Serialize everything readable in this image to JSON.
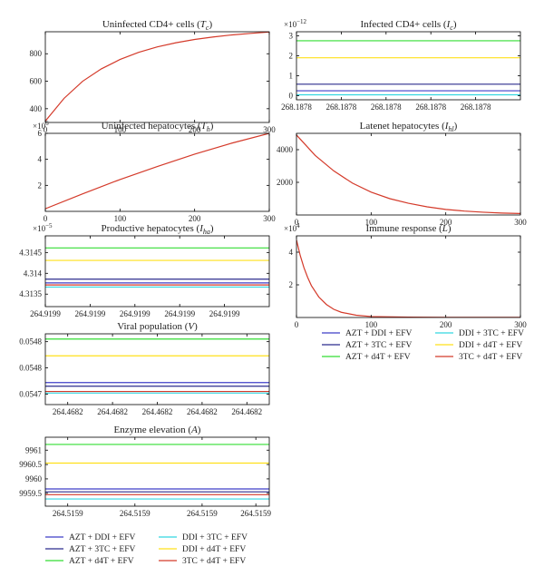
{
  "colors": {
    "AZT + DDI + EFV": "#3f3fc8",
    "AZT + 3TC + EFV": "#2b2b8e",
    "AZT + d4T + EFV": "#33dd33",
    "DDI + 3TC + EFV": "#33d6e0",
    "DDI + d4T + EFV": "#ffe01a",
    "3TC + d4T + EFV": "#d43a2a",
    "axis": "#000000",
    "background": "#ffffff"
  },
  "chart_data": [
    {
      "id": "tc",
      "type": "line",
      "title": "Uninfected CD4+ cells (",
      "title_symbol": "T",
      "title_sub": "c",
      "title_close": ")",
      "xlim": [
        0,
        300
      ],
      "ylim": [
        300,
        960
      ],
      "xticks": [
        0,
        100,
        200,
        300
      ],
      "xtick_labels": [
        "0",
        "100",
        "200",
        "300"
      ],
      "yticks": [
        400,
        600,
        800
      ],
      "ytick_labels": [
        "400",
        "600",
        "800"
      ],
      "exponent": "",
      "x": [
        0,
        25,
        50,
        75,
        100,
        125,
        150,
        175,
        200,
        225,
        250,
        275,
        300
      ],
      "series": [
        {
          "name": "3TC + d4T + EFV",
          "values": [
            310,
            475,
            600,
            690,
            758,
            810,
            850,
            880,
            904,
            922,
            937,
            948,
            958
          ]
        }
      ]
    },
    {
      "id": "ic",
      "type": "line",
      "title": "Infected CD4+ cells (",
      "title_symbol": "I",
      "title_sub": "c",
      "title_close": ")",
      "xlim": [
        0,
        5
      ],
      "ylim": [
        -0.2,
        3.2
      ],
      "xticks": [
        0,
        1,
        2,
        3,
        4
      ],
      "xtick_labels": [
        "268.1878",
        "268.1878",
        "268.1878",
        "268.1878",
        "268.1878"
      ],
      "yticks": [
        0,
        1,
        2,
        3
      ],
      "ytick_labels": [
        "0",
        "1",
        "2",
        "3"
      ],
      "exponent": "×10",
      "exponent_power": "−12",
      "x": [
        0,
        5
      ],
      "series": [
        {
          "name": "AZT + d4T + EFV",
          "values": [
            2.75,
            2.75
          ]
        },
        {
          "name": "DDI + d4T + EFV",
          "values": [
            1.9,
            1.9
          ]
        },
        {
          "name": "AZT + 3TC + EFV",
          "values": [
            0.58,
            0.58
          ]
        },
        {
          "name": "AZT + DDI + EFV",
          "values": [
            0.25,
            0.25
          ]
        },
        {
          "name": "DDI + 3TC + EFV",
          "values": [
            0.05,
            0.05
          ]
        }
      ]
    },
    {
      "id": "th",
      "type": "line",
      "title": "Uninfected hepatocytes (",
      "title_symbol": "T",
      "title_sub": "h",
      "title_close": ")",
      "xlim": [
        0,
        300
      ],
      "ylim": [
        0,
        6
      ],
      "xticks": [
        0,
        100,
        200,
        300
      ],
      "xtick_labels": [
        "0",
        "100",
        "200",
        "300"
      ],
      "yticks": [
        2,
        4,
        6
      ],
      "ytick_labels": [
        "2",
        "4",
        "6"
      ],
      "exponent": "×10",
      "exponent_power": "6",
      "x": [
        0,
        50,
        100,
        150,
        200,
        250,
        300
      ],
      "series": [
        {
          "name": "3TC + d4T + EFV",
          "values": [
            0.2,
            1.35,
            2.45,
            3.45,
            4.4,
            5.25,
            6.0
          ]
        }
      ]
    },
    {
      "id": "ihl",
      "type": "line",
      "title": "Latenet hepatocytes (",
      "title_symbol": "I",
      "title_sub": "hl",
      "title_close": ")",
      "xlim": [
        0,
        300
      ],
      "ylim": [
        0,
        5000
      ],
      "xticks": [
        0,
        100,
        200,
        300
      ],
      "xtick_labels": [
        "0",
        "100",
        "200",
        "300"
      ],
      "yticks": [
        2000,
        4000
      ],
      "ytick_labels": [
        "2000",
        "4000"
      ],
      "exponent": "",
      "x": [
        0,
        25,
        50,
        75,
        100,
        125,
        150,
        175,
        200,
        225,
        250,
        275,
        300
      ],
      "series": [
        {
          "name": "3TC + d4T + EFV",
          "values": [
            4900,
            3650,
            2700,
            1950,
            1400,
            1000,
            720,
            500,
            340,
            240,
            170,
            120,
            90
          ]
        }
      ]
    },
    {
      "id": "iha",
      "type": "line",
      "title": "Productive hepatocytes (",
      "title_symbol": "I",
      "title_sub": "ha",
      "title_close": ")",
      "xlim": [
        0,
        5
      ],
      "ylim": [
        4.3132,
        4.3149
      ],
      "xticks": [
        0,
        1,
        2,
        3,
        4
      ],
      "xtick_labels": [
        "264.9199",
        "264.9199",
        "264.9199",
        "264.9199",
        "264.9199"
      ],
      "yticks": [
        4.3135,
        4.314,
        4.3145
      ],
      "ytick_labels": [
        "4.3135",
        "4.314",
        "4.3145"
      ],
      "exponent": "×10",
      "exponent_power": "−5",
      "x": [
        0,
        5
      ],
      "series": [
        {
          "name": "AZT + d4T + EFV",
          "values": [
            4.31461,
            4.31461
          ]
        },
        {
          "name": "DDI + d4T + EFV",
          "values": [
            4.31431,
            4.31431
          ]
        },
        {
          "name": "AZT + 3TC + EFV",
          "values": [
            4.31386,
            4.31386
          ]
        },
        {
          "name": "AZT + DDI + EFV",
          "values": [
            4.31377,
            4.31377
          ]
        },
        {
          "name": "3TC + d4T + EFV",
          "values": [
            4.31372,
            4.31372
          ]
        },
        {
          "name": "DDI + 3TC + EFV",
          "values": [
            4.31367,
            4.31367
          ]
        }
      ]
    },
    {
      "id": "l",
      "type": "line",
      "title": "Immune response (",
      "title_symbol": "L",
      "title_sub": "",
      "title_close": ")",
      "xlim": [
        0,
        300
      ],
      "ylim": [
        0,
        5
      ],
      "xticks": [
        0,
        100,
        200,
        300
      ],
      "xtick_labels": [
        "0",
        "100",
        "200",
        "300"
      ],
      "yticks": [
        2,
        4
      ],
      "ytick_labels": [
        "2",
        "4"
      ],
      "exponent": "×10",
      "exponent_power": "4",
      "x": [
        0,
        5,
        10,
        15,
        20,
        30,
        40,
        50,
        60,
        80,
        100,
        150,
        200,
        250,
        300
      ],
      "series": [
        {
          "name": "3TC + d4T + EFV",
          "values": [
            4.75,
            3.8,
            3.05,
            2.45,
            1.95,
            1.25,
            0.8,
            0.5,
            0.32,
            0.14,
            0.06,
            0.02,
            0.01,
            0.01,
            0.01
          ]
        }
      ]
    },
    {
      "id": "v",
      "type": "line",
      "title": "Viral population (",
      "title_symbol": "V",
      "title_sub": "",
      "title_close": ")",
      "xlim": [
        0,
        5
      ],
      "ylim": [
        0.05468,
        0.054815
      ],
      "xticks": [
        0.5,
        1.5,
        2.5,
        3.5,
        4.5
      ],
      "xtick_labels": [
        "264.4682",
        "264.4682",
        "264.4682",
        "264.4682",
        "264.4682"
      ],
      "yticks": [
        0.0547,
        0.05475,
        0.0548
      ],
      "ytick_labels": [
        "0.0547",
        "0.0548",
        "0.0548"
      ],
      "exponent": "",
      "x": [
        0,
        5
      ],
      "series": [
        {
          "name": "AZT + d4T + EFV",
          "values": [
            0.054805,
            0.054805
          ]
        },
        {
          "name": "DDI + d4T + EFV",
          "values": [
            0.054773,
            0.054773
          ]
        },
        {
          "name": "AZT + DDI + EFV",
          "values": [
            0.054722,
            0.054722
          ]
        },
        {
          "name": "AZT + 3TC + EFV",
          "values": [
            0.054715,
            0.054715
          ]
        },
        {
          "name": "3TC + d4T + EFV",
          "values": [
            0.054705,
            0.054705
          ]
        },
        {
          "name": "DDI + 3TC + EFV",
          "values": [
            0.054702,
            0.054702
          ]
        }
      ]
    },
    {
      "id": "a",
      "type": "line",
      "title": "Enzyme elevation (",
      "title_symbol": "A",
      "title_sub": "",
      "title_close": ")",
      "xlim": [
        0,
        5
      ],
      "ylim": [
        9959.05,
        9961.45
      ],
      "xticks": [
        0.5,
        2,
        3.5,
        4.7
      ],
      "xtick_labels": [
        "264.5159",
        "264.5159",
        "264.5159",
        "264.5159"
      ],
      "yticks": [
        9959.5,
        9960,
        9960.5,
        9961
      ],
      "ytick_labels": [
        "9959.5",
        "9960",
        "9960.5",
        "9961"
      ],
      "exponent": "",
      "x": [
        0,
        5
      ],
      "series": [
        {
          "name": "AZT + d4T + EFV",
          "values": [
            9961.2,
            9961.2
          ]
        },
        {
          "name": "DDI + d4T + EFV",
          "values": [
            9960.55,
            9960.55
          ]
        },
        {
          "name": "AZT + DDI + EFV",
          "values": [
            9959.65,
            9959.65
          ]
        },
        {
          "name": "AZT + 3TC + EFV",
          "values": [
            9959.55,
            9959.55
          ]
        },
        {
          "name": "3TC + d4T + EFV",
          "values": [
            9959.45,
            9959.45
          ]
        },
        {
          "name": "DDI + 3TC + EFV",
          "values": [
            9959.3,
            9959.3
          ]
        }
      ]
    }
  ],
  "legends": [
    {
      "id": "legend-right",
      "columns": [
        [
          "AZT + DDI + EFV",
          "AZT + 3TC + EFV",
          "AZT + d4T + EFV"
        ],
        [
          "DDI + 3TC + EFV",
          "DDI + d4T + EFV",
          "3TC + d4T + EFV"
        ]
      ]
    },
    {
      "id": "legend-bottom",
      "columns": [
        [
          "AZT + DDI + EFV",
          "AZT + 3TC + EFV",
          "AZT + d4T + EFV"
        ],
        [
          "DDI + 3TC + EFV",
          "DDI + d4T + EFV",
          "3TC + d4T + EFV"
        ]
      ]
    }
  ]
}
